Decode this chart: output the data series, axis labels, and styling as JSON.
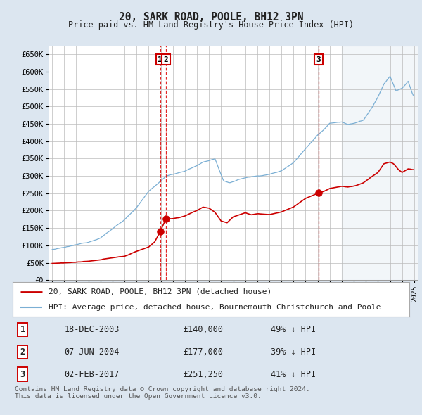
{
  "title": "20, SARK ROAD, POOLE, BH12 3PN",
  "subtitle": "Price paid vs. HM Land Registry's House Price Index (HPI)",
  "ylim": [
    0,
    675000
  ],
  "yticks": [
    0,
    50000,
    100000,
    150000,
    200000,
    250000,
    300000,
    350000,
    400000,
    450000,
    500000,
    550000,
    600000,
    650000
  ],
  "hpi_color": "#7bafd4",
  "price_color": "#cc0000",
  "background_color": "#dce6f0",
  "plot_bg_color": "#ffffff",
  "grid_color": "#bbbbbb",
  "transactions": [
    {
      "label": "1",
      "date_str": "18-DEC-2003",
      "date_num": 2003.96,
      "price": 140000,
      "hpi_pct": "49% ↓ HPI"
    },
    {
      "label": "2",
      "date_str": "07-JUN-2004",
      "date_num": 2004.44,
      "price": 177000,
      "hpi_pct": "39% ↓ HPI"
    },
    {
      "label": "3",
      "date_str": "02-FEB-2017",
      "date_num": 2017.09,
      "price": 251250,
      "hpi_pct": "41% ↓ HPI"
    }
  ],
  "legend_line1": "20, SARK ROAD, POOLE, BH12 3PN (detached house)",
  "legend_line2": "HPI: Average price, detached house, Bournemouth Christchurch and Poole",
  "footer1": "Contains HM Land Registry data © Crown copyright and database right 2024.",
  "footer2": "This data is licensed under the Open Government Licence v3.0."
}
